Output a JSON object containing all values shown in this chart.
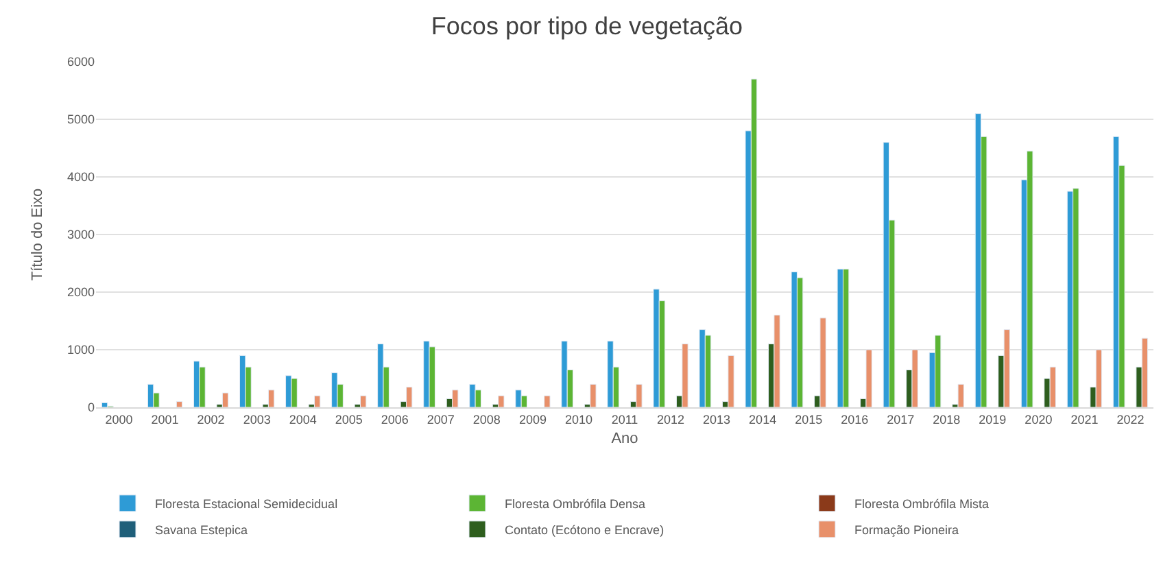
{
  "chart_data": {
    "type": "bar",
    "title": "Focos por tipo de vegetação",
    "xlabel": "Ano",
    "ylabel": "Título do Eixo",
    "categories": [
      "2000",
      "2001",
      "2002",
      "2003",
      "2004",
      "2005",
      "2006",
      "2007",
      "2008",
      "2009",
      "2010",
      "2011",
      "2012",
      "2013",
      "2014",
      "2015",
      "2016",
      "2017",
      "2018",
      "2019",
      "2020",
      "2021",
      "2022"
    ],
    "series": [
      {
        "name": "Floresta Estacional Semidecidual",
        "color": "#2e9bd6",
        "values": [
          80,
          400,
          800,
          900,
          550,
          600,
          1100,
          1150,
          400,
          300,
          1150,
          1150,
          2050,
          1350,
          4800,
          2350,
          2400,
          4600,
          950,
          5100,
          3950,
          3750,
          4700
        ]
      },
      {
        "name": "Floresta Ombrófila Densa",
        "color": "#5cb534",
        "values": [
          20,
          250,
          700,
          700,
          500,
          400,
          700,
          1050,
          300,
          200,
          650,
          700,
          1850,
          1250,
          5700,
          2250,
          2400,
          3250,
          1250,
          4700,
          4450,
          3800,
          4200
        ]
      },
      {
        "name": "Floresta Ombrófila Mista",
        "color": "#8b3a1a",
        "values": [
          null,
          null,
          null,
          null,
          null,
          null,
          null,
          null,
          null,
          null,
          null,
          null,
          null,
          null,
          null,
          null,
          null,
          null,
          null,
          null,
          null,
          null,
          null
        ]
      },
      {
        "name": "Savana Estepica",
        "color": "#1f5f7a",
        "values": [
          null,
          null,
          null,
          null,
          null,
          null,
          null,
          null,
          null,
          null,
          null,
          null,
          null,
          null,
          null,
          null,
          null,
          null,
          null,
          null,
          null,
          null,
          null
        ]
      },
      {
        "name": "Contato (Ecótono e Encrave)",
        "color": "#2e5e1e",
        "values": [
          null,
          null,
          50,
          50,
          50,
          50,
          100,
          150,
          50,
          null,
          50,
          100,
          200,
          100,
          1100,
          200,
          150,
          650,
          50,
          900,
          500,
          350,
          700
        ]
      },
      {
        "name": "Formação Pioneira",
        "color": "#e8906a",
        "values": [
          null,
          100,
          250,
          300,
          200,
          200,
          350,
          300,
          200,
          200,
          400,
          400,
          1100,
          900,
          1600,
          1550,
          1000,
          1000,
          400,
          1350,
          700,
          1000,
          1200
        ]
      }
    ],
    "ylim": [
      0,
      6000
    ],
    "yticks": [
      0,
      1000,
      2000,
      3000,
      4000,
      5000,
      6000
    ],
    "grid": "y",
    "legend": "bottom"
  }
}
